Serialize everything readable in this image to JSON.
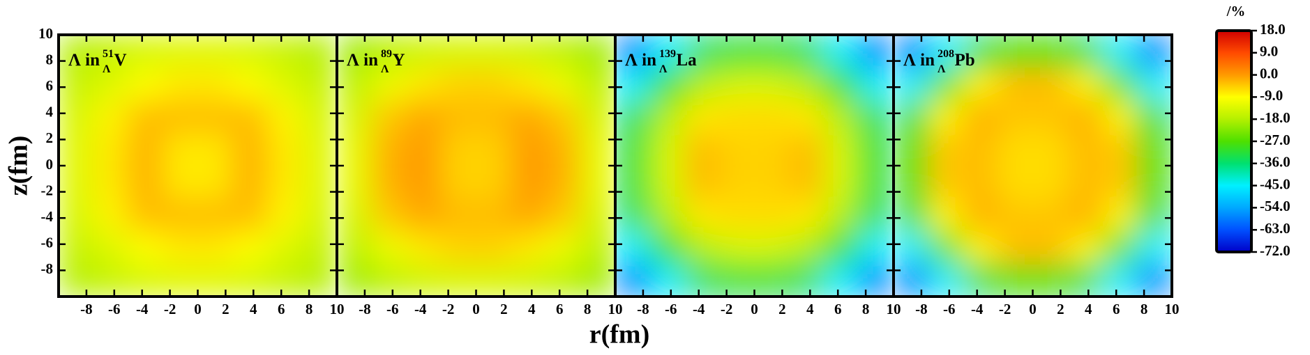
{
  "chart_data": {
    "type": "heatmap",
    "xlabel": "r(fm)",
    "ylabel": "z(fm)",
    "xlim": [
      -10,
      10
    ],
    "xticks": [
      -8,
      -6,
      -4,
      -2,
      0,
      2,
      4,
      6,
      8,
      10
    ],
    "ylim": [
      -10,
      10
    ],
    "yticks": [
      -8,
      -6,
      -4,
      -2,
      0,
      2,
      4,
      6,
      8,
      10
    ],
    "x": [
      -8.75,
      -6.25,
      -3.75,
      -1.25,
      1.25,
      3.75,
      6.25,
      8.75
    ],
    "y": [
      -8.75,
      -6.25,
      -3.75,
      -1.25,
      1.25,
      3.75,
      6.25,
      8.75
    ],
    "colorbar": {
      "label": "/%",
      "lim": [
        -72,
        18
      ],
      "ticks": [
        {
          "value": 18,
          "label": "18.0"
        },
        {
          "value": 9,
          "label": "9.0"
        },
        {
          "value": 0,
          "label": "0.0"
        },
        {
          "value": -9,
          "label": "-9.0"
        },
        {
          "value": -18,
          "label": "-18.0"
        },
        {
          "value": -27,
          "label": "-27.0"
        },
        {
          "value": -36,
          "label": "-36.0"
        },
        {
          "value": -45,
          "label": "-45.0"
        },
        {
          "value": -54,
          "label": "-54.0"
        },
        {
          "value": -63,
          "label": "-63.0"
        },
        {
          "value": -72,
          "label": "-72.0"
        }
      ],
      "colors": [
        "#d00000",
        "#ff4a00",
        "#ff9a00",
        "#ffff00",
        "#b4f000",
        "#4ee000",
        "#00e070",
        "#00f0ff",
        "#00a8ff",
        "#0050ff",
        "#0000c8"
      ]
    },
    "panels": [
      {
        "title": {
          "prefix": "Λ in",
          "mass": "51",
          "sub": "Λ",
          "element": "V"
        },
        "values": [
          [
            -18,
            -16,
            -14,
            -13,
            -13,
            -14,
            -16,
            -18
          ],
          [
            -16,
            -13,
            -9,
            -7,
            -7,
            -9,
            -13,
            -16
          ],
          [
            -14,
            -8,
            -3,
            -3,
            -3,
            -3,
            -8,
            -14
          ],
          [
            -13,
            -7,
            -2,
            -7,
            -7,
            -2,
            -7,
            -13
          ],
          [
            -13,
            -7,
            -2,
            -7,
            -7,
            -2,
            -7,
            -13
          ],
          [
            -14,
            -8,
            -3,
            -3,
            -3,
            -3,
            -8,
            -14
          ],
          [
            -16,
            -13,
            -9,
            -7,
            -7,
            -9,
            -13,
            -16
          ],
          [
            -18,
            -16,
            -14,
            -13,
            -13,
            -14,
            -16,
            -18
          ]
        ]
      },
      {
        "title": {
          "prefix": "Λ in",
          "mass": "89",
          "sub": "Λ",
          "element": "Y"
        },
        "values": [
          [
            -20,
            -17,
            -15,
            -14,
            -14,
            -15,
            -17,
            -20
          ],
          [
            -17,
            -11,
            -7,
            -5,
            -5,
            -7,
            -11,
            -17
          ],
          [
            -14,
            -4,
            -1,
            -3,
            -3,
            -1,
            -4,
            -14
          ],
          [
            -12,
            -2,
            0,
            -5,
            -5,
            0,
            -2,
            -12
          ],
          [
            -12,
            -2,
            0,
            -5,
            -5,
            0,
            -2,
            -12
          ],
          [
            -14,
            -4,
            -1,
            -3,
            -3,
            -1,
            -4,
            -14
          ],
          [
            -17,
            -11,
            -7,
            -5,
            -5,
            -7,
            -11,
            -17
          ],
          [
            -20,
            -17,
            -15,
            -14,
            -14,
            -15,
            -17,
            -20
          ]
        ]
      },
      {
        "title": {
          "prefix": "Λ in",
          "mass": "139",
          "sub": "Λ",
          "element": "La"
        },
        "values": [
          [
            -58,
            -45,
            -35,
            -32,
            -32,
            -35,
            -45,
            -58
          ],
          [
            -45,
            -30,
            -18,
            -14,
            -14,
            -18,
            -30,
            -45
          ],
          [
            -35,
            -18,
            -7,
            -6,
            -6,
            -7,
            -18,
            -35
          ],
          [
            -32,
            -14,
            -3,
            -5,
            -5,
            -3,
            -14,
            -32
          ],
          [
            -32,
            -14,
            -3,
            -5,
            -5,
            -3,
            -14,
            -32
          ],
          [
            -35,
            -18,
            -7,
            -6,
            -6,
            -7,
            -18,
            -35
          ],
          [
            -45,
            -30,
            -18,
            -14,
            -14,
            -18,
            -30,
            -45
          ],
          [
            -58,
            -45,
            -35,
            -32,
            -32,
            -35,
            -45,
            -58
          ]
        ]
      },
      {
        "title": {
          "prefix": "Λ in",
          "mass": "208",
          "sub": "Λ",
          "element": "Pb"
        },
        "values": [
          [
            -58,
            -45,
            -33,
            -28,
            -28,
            -33,
            -45,
            -58
          ],
          [
            -45,
            -25,
            -8,
            -3,
            -3,
            -8,
            -25,
            -45
          ],
          [
            -33,
            -8,
            -2,
            -4,
            -4,
            -2,
            -8,
            -33
          ],
          [
            -28,
            -4,
            -3,
            -6,
            -6,
            -3,
            -4,
            -28
          ],
          [
            -28,
            -4,
            -3,
            -6,
            -6,
            -3,
            -4,
            -28
          ],
          [
            -33,
            -8,
            -2,
            -4,
            -4,
            -2,
            -8,
            -33
          ],
          [
            -45,
            -25,
            -8,
            -3,
            -3,
            -8,
            -25,
            -45
          ],
          [
            -58,
            -45,
            -33,
            -28,
            -28,
            -33,
            -45,
            -58
          ]
        ]
      }
    ]
  }
}
